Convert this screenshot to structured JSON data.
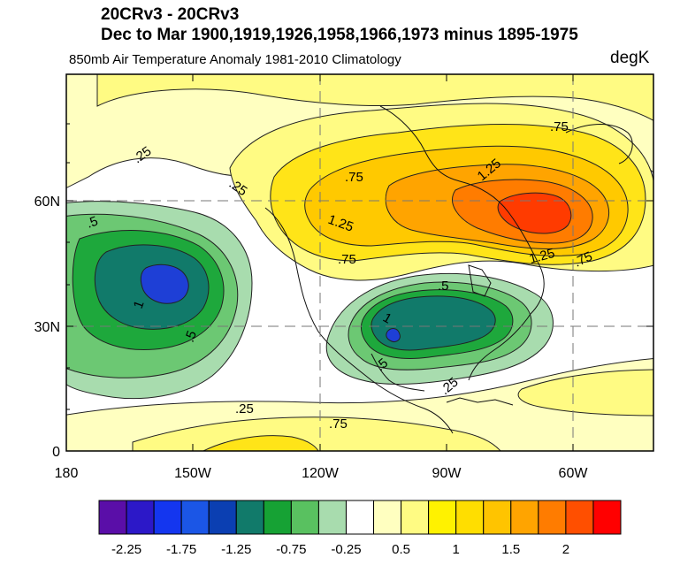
{
  "header": {
    "title_line1": "20CRv3 - 20CRv3",
    "title_line2": "Dec to Mar 1900,1919,1926,1958,1966,1973 minus 1895-1975",
    "left_subtitle": "850mb Air Temperature Anomaly  1981-2010 Climatology",
    "units": "degK"
  },
  "map": {
    "lat_ticks": [
      "60N",
      "30N",
      "0"
    ],
    "lon_ticks": [
      "180",
      "150W",
      "120W",
      "90W",
      "60W"
    ],
    "contour_labels": [
      ".25",
      ".25",
      ".75",
      "1.25",
      "1.25",
      ".75",
      ".75",
      "1.25",
      ".75",
      ".5",
      ".5",
      "1",
      "1",
      ".5",
      ".5",
      ".25",
      ".25",
      ".75"
    ],
    "colors": {
      "neg_strong": "#1e3fd6",
      "neg_dark": "#117a6a",
      "neg_mid": "#1ea83c",
      "neg_light": "#6cc873",
      "neg_pale": "#a8dcae",
      "pos_pale": "#ffffc0",
      "pos_light": "#fffb83",
      "pos_yellow": "#ffe418",
      "pos_gold": "#ffc900",
      "pos_orange": "#ffa400",
      "pos_dark_orange": "#ff7c00",
      "pos_red": "#ff3b00"
    }
  },
  "colorbar": {
    "labels": [
      "-2.25",
      "-1.75",
      "-1.25",
      "-0.75",
      "-0.25",
      "0.5",
      "1",
      "1.5",
      "2"
    ],
    "colors": [
      "#5a0ea8",
      "#2c18c8",
      "#1436ef",
      "#1b56e6",
      "#0b3fb2",
      "#117a6a",
      "#16a234",
      "#59c160",
      "#a8dcae",
      "#ffffff",
      "#ffffc0",
      "#fffb83",
      "#fff200",
      "#ffde00",
      "#ffc400",
      "#ffa400",
      "#ff7c00",
      "#ff4f00",
      "#ff0000"
    ]
  }
}
